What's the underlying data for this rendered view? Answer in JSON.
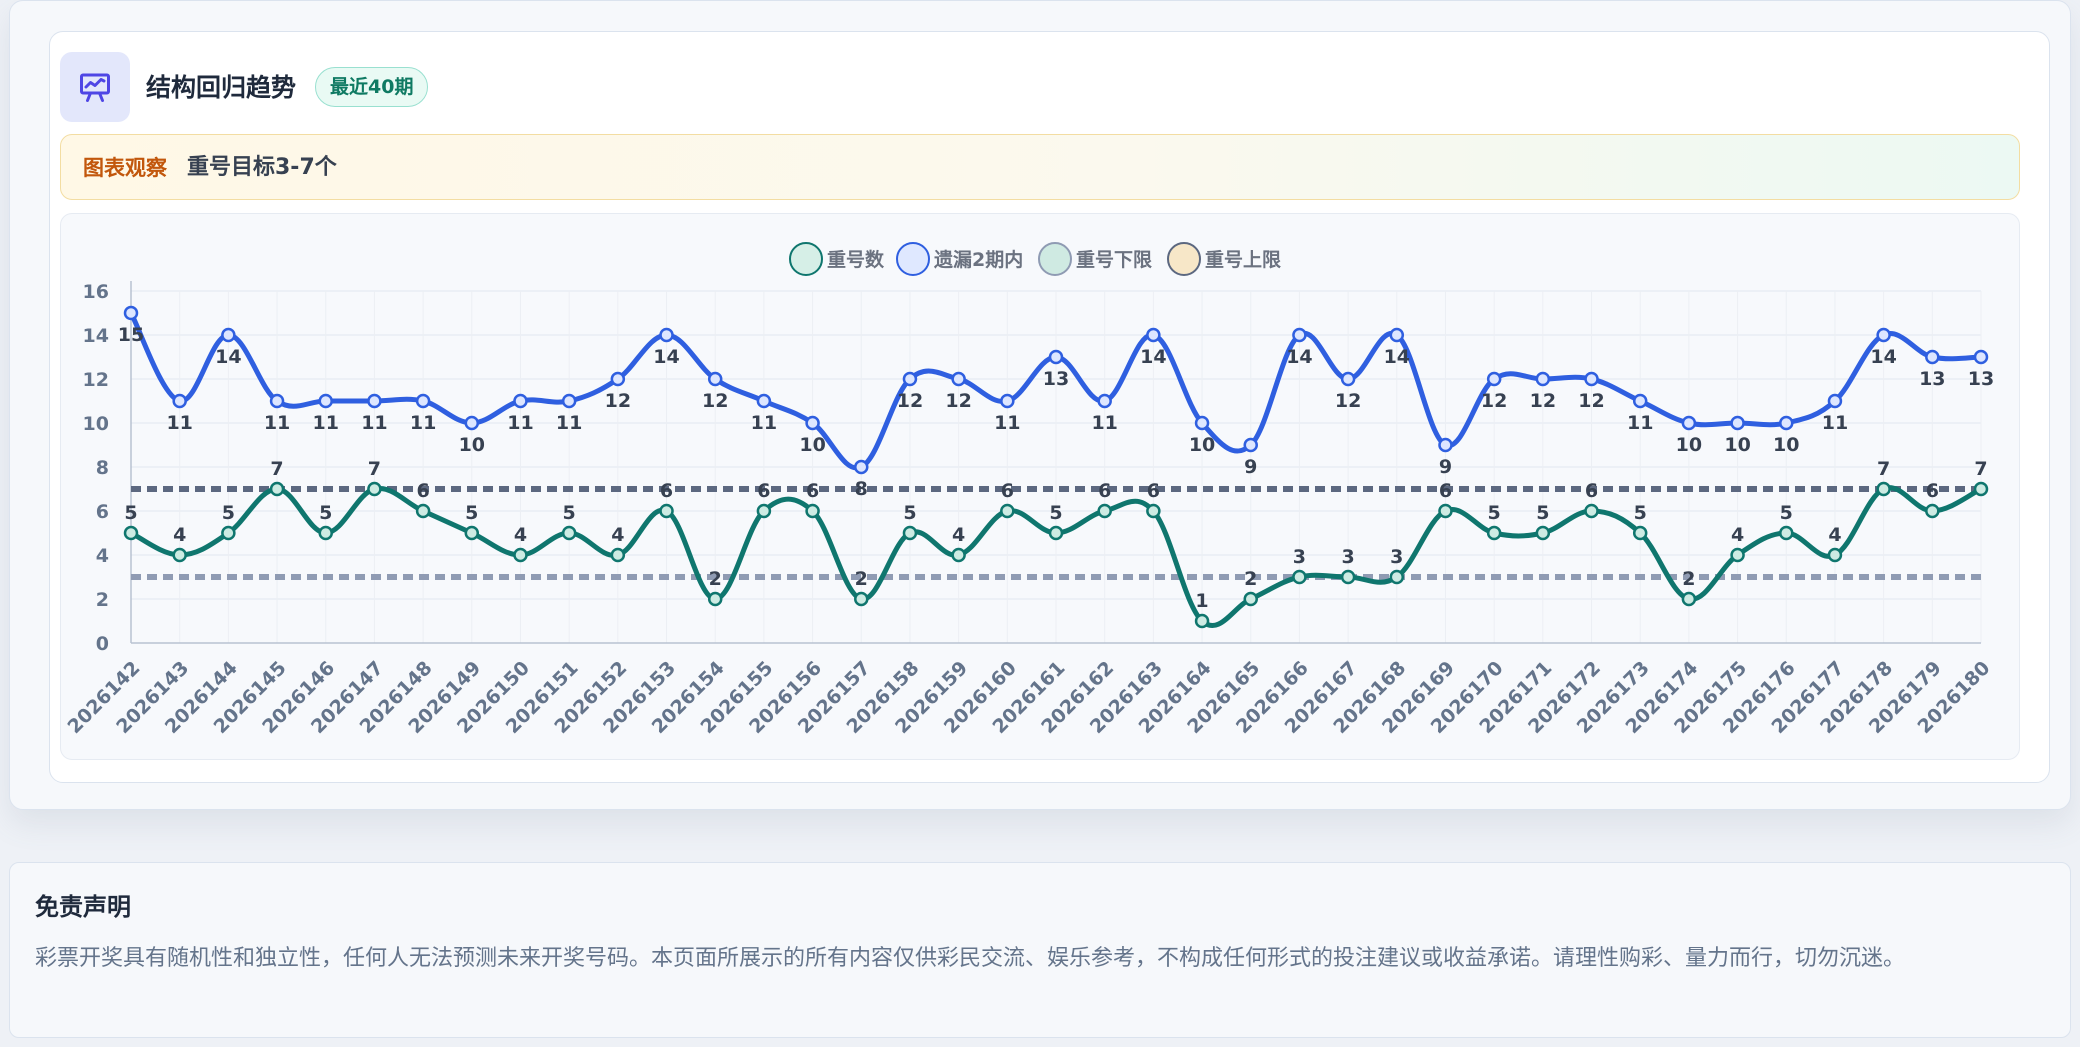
{
  "header": {
    "title": "结构回归趋势",
    "badge": "最近40期",
    "icon": "presentation-chart-icon"
  },
  "observation": {
    "label": "图表观察",
    "text": "重号目标3-7个"
  },
  "colors": {
    "repeat_line": "#0f766e",
    "missing_line": "#2f5fe0",
    "upper_limit": "#5c6880",
    "lower_limit": "#8f9bb3",
    "badge_text": "#0f7a63",
    "observation_label": "#c2570c"
  },
  "chart_data": {
    "type": "line",
    "x": [
      "2026142",
      "2026143",
      "2026144",
      "2026145",
      "2026146",
      "2026147",
      "2026148",
      "2026149",
      "2026150",
      "2026151",
      "2026152",
      "2026153",
      "2026154",
      "2026155",
      "2026156",
      "2026157",
      "2026158",
      "2026159",
      "2026160",
      "2026161",
      "2026162",
      "2026163",
      "2026164",
      "2026165",
      "2026166",
      "2026167",
      "2026168",
      "2026169",
      "2026170",
      "2026171",
      "2026172",
      "2026173",
      "2026174",
      "2026175",
      "2026176",
      "2026177",
      "2026178",
      "2026179",
      "2026180"
    ],
    "ylim": [
      0,
      16
    ],
    "yticks": [
      0,
      2,
      4,
      6,
      8,
      10,
      12,
      14,
      16
    ],
    "grid": true,
    "legend_position": "top-center",
    "series": [
      {
        "name": "重号数",
        "values": [
          5,
          4,
          5,
          7,
          5,
          7,
          6,
          5,
          4,
          5,
          4,
          6,
          2,
          6,
          6,
          2,
          5,
          4,
          6,
          5,
          6,
          6,
          1,
          2,
          3,
          3,
          3,
          6,
          5,
          5,
          6,
          5,
          2,
          4,
          5,
          4,
          7,
          6,
          7
        ]
      },
      {
        "name": "遗漏2期内",
        "values": [
          15,
          11,
          14,
          11,
          11,
          11,
          11,
          10,
          11,
          11,
          12,
          14,
          12,
          11,
          10,
          8,
          12,
          12,
          11,
          13,
          11,
          14,
          10,
          9,
          14,
          12,
          14,
          9,
          12,
          12,
          12,
          11,
          10,
          10,
          10,
          11,
          14,
          13,
          13
        ]
      },
      {
        "name": "重号下限",
        "values": [
          3,
          3,
          3,
          3,
          3,
          3,
          3,
          3,
          3,
          3,
          3,
          3,
          3,
          3,
          3,
          3,
          3,
          3,
          3,
          3,
          3,
          3,
          3,
          3,
          3,
          3,
          3,
          3,
          3,
          3,
          3,
          3,
          3,
          3,
          3,
          3,
          3,
          3,
          3
        ]
      },
      {
        "name": "重号上限",
        "values": [
          7,
          7,
          7,
          7,
          7,
          7,
          7,
          7,
          7,
          7,
          7,
          7,
          7,
          7,
          7,
          7,
          7,
          7,
          7,
          7,
          7,
          7,
          7,
          7,
          7,
          7,
          7,
          7,
          7,
          7,
          7,
          7,
          7,
          7,
          7,
          7,
          7,
          7,
          7
        ]
      }
    ]
  },
  "disclaimer": {
    "title": "免责声明",
    "text": "彩票开奖具有随机性和独立性，任何人无法预测未来开奖号码。本页面所展示的所有内容仅供彩民交流、娱乐参考，不构成任何形式的投注建议或收益承诺。请理性购彩、量力而行，切勿沉迷。"
  }
}
